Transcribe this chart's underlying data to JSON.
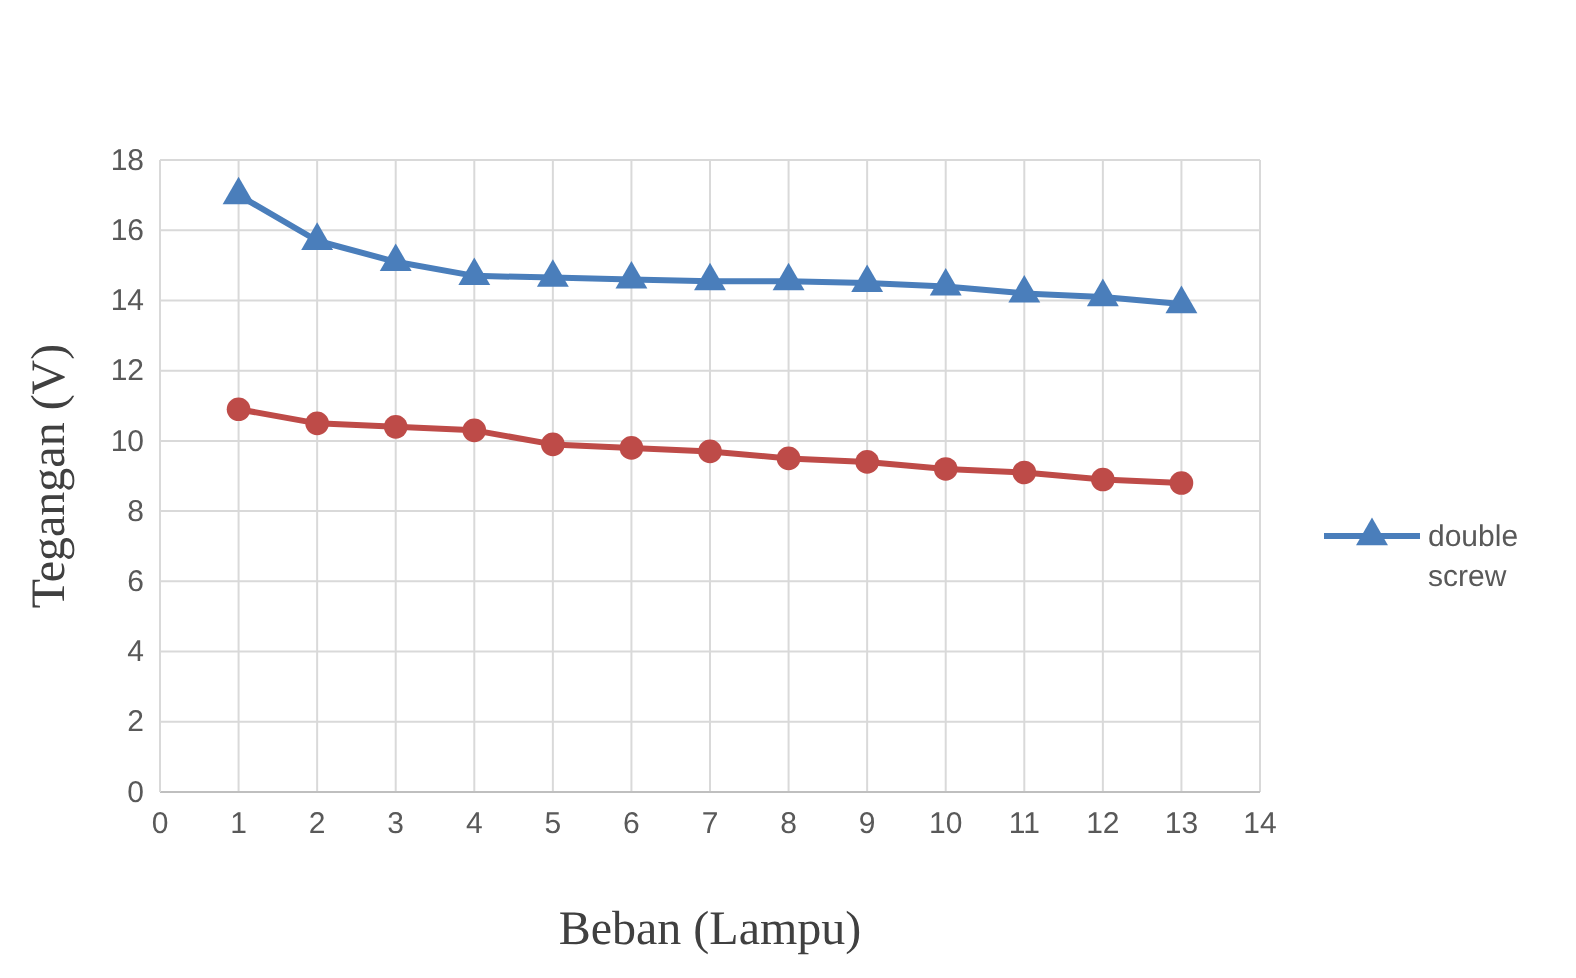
{
  "chart_data": {
    "type": "line",
    "xlabel": "Beban (Lampu)",
    "ylabel": "Tegangan (V)",
    "x": [
      1,
      2,
      3,
      4,
      5,
      6,
      7,
      8,
      9,
      10,
      11,
      12,
      13
    ],
    "xlim": [
      0,
      14
    ],
    "xticks": [
      0,
      1,
      2,
      3,
      4,
      5,
      6,
      7,
      8,
      9,
      10,
      11,
      12,
      13,
      14
    ],
    "ylim": [
      0,
      18
    ],
    "yticks": [
      0,
      2,
      4,
      6,
      8,
      10,
      12,
      14,
      16,
      18
    ],
    "grid": true,
    "legend": "right",
    "line_style": "solid",
    "series": [
      {
        "name": "double screw",
        "color": "#4a7ebb",
        "marker": "triangle",
        "values": [
          17,
          15.7,
          15.1,
          14.7,
          14.65,
          14.6,
          14.55,
          14.55,
          14.5,
          14.4,
          14.2,
          14.1,
          13.9
        ]
      },
      {
        "color": "#be4b48",
        "marker": "circle",
        "values": [
          10.9,
          10.5,
          10.4,
          10.3,
          9.9,
          9.8,
          9.7,
          9.5,
          9.4,
          9.2,
          9.1,
          8.9,
          8.8
        ]
      }
    ]
  }
}
